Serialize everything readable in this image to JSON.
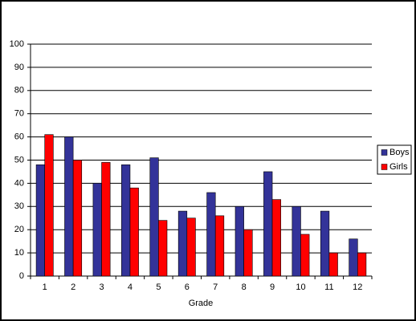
{
  "chart_data": {
    "type": "bar",
    "x_label": "Grade",
    "categories": [
      "1",
      "2",
      "3",
      "4",
      "5",
      "6",
      "7",
      "8",
      "9",
      "10",
      "11",
      "12"
    ],
    "series": [
      {
        "name": "Boys",
        "color": "#333399",
        "values": [
          48,
          60,
          40,
          48,
          51,
          28,
          36,
          30,
          45,
          30,
          28,
          16
        ]
      },
      {
        "name": "Girls",
        "color": "#ff0000",
        "values": [
          61,
          50,
          49,
          38,
          24,
          25,
          26,
          20,
          33,
          18,
          10,
          10
        ]
      }
    ],
    "ylim": [
      0,
      100
    ],
    "yticks": [
      0,
      10,
      20,
      30,
      40,
      50,
      60,
      70,
      80,
      90,
      100
    ],
    "grid": true,
    "legend": "right"
  }
}
